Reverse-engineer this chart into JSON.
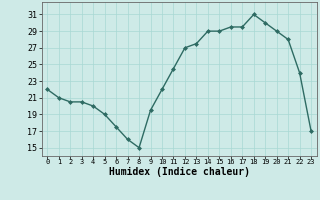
{
  "x": [
    0,
    1,
    2,
    3,
    4,
    5,
    6,
    7,
    8,
    9,
    10,
    11,
    12,
    13,
    14,
    15,
    16,
    17,
    18,
    19,
    20,
    21,
    22,
    23
  ],
  "y": [
    22,
    21,
    20.5,
    20.5,
    20,
    19,
    17.5,
    16,
    15,
    19.5,
    22,
    24.5,
    27,
    27.5,
    29,
    29,
    29.5,
    29.5,
    31,
    30,
    29,
    28,
    24,
    17
  ],
  "line_color": "#2e6b63",
  "marker": "D",
  "marker_size": 2,
  "bg_color": "#ceeae7",
  "grid_color": "#a8d8d4",
  "xlabel": "Humidex (Indice chaleur)",
  "xlabel_fontsize": 7,
  "ytick_labels": [
    "15",
    "17",
    "19",
    "21",
    "23",
    "25",
    "27",
    "29",
    "31"
  ],
  "ytick_vals": [
    15,
    17,
    19,
    21,
    23,
    25,
    27,
    29,
    31
  ],
  "xlim": [
    -0.5,
    23.5
  ],
  "ylim": [
    14,
    32.5
  ]
}
